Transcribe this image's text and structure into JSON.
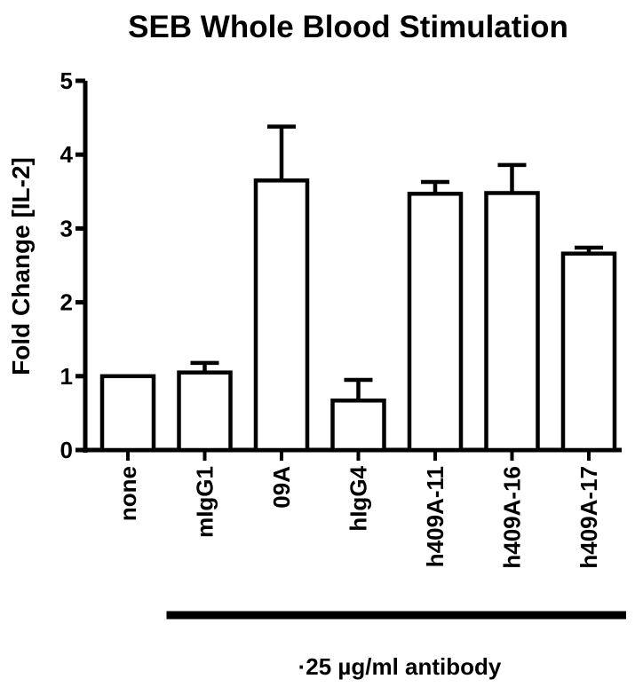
{
  "chart_data": {
    "type": "bar",
    "title": "SEB Whole Blood Stimulation",
    "ylabel": "Fold Change [IL-2]",
    "xlabel": "",
    "ylim": [
      0,
      5
    ],
    "yticks": [
      "0",
      "1",
      "2",
      "3",
      "4",
      "5"
    ],
    "categories": [
      "none",
      "mIgG1",
      "09A",
      "hIgG4",
      "h409A-11",
      "h409A-16",
      "h409A-17"
    ],
    "values": [
      1.0,
      1.05,
      3.65,
      0.67,
      3.47,
      3.48,
      2.66
    ],
    "error_upper": [
      1.0,
      1.18,
      4.38,
      0.95,
      3.63,
      3.86,
      2.74
    ],
    "group_label": "·25 µg/ml antibody",
    "group_span": [
      "mIgG1",
      "h409A-17"
    ],
    "grid": false,
    "legend": "none",
    "colors": {
      "bar_fill": "#ffffff",
      "bar_stroke": "#000000"
    }
  }
}
